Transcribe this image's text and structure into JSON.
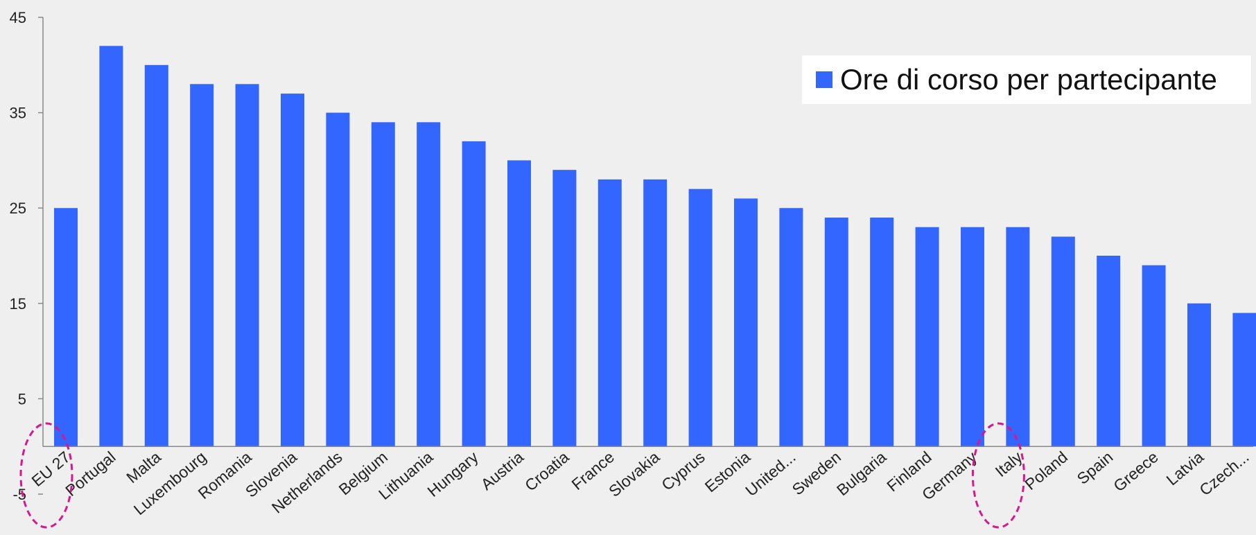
{
  "chart_data": {
    "type": "bar",
    "categories": [
      "EU 27",
      "Portugal",
      "Malta",
      "Luxembourg",
      "Romania",
      "Slovenia",
      "Netherlands",
      "Belgium",
      "Lithuania",
      "Hungary",
      "Austria",
      "Croatia",
      "France",
      "Slovakia",
      "Cyprus",
      "Estonia",
      "United...",
      "Sweden",
      "Bulgaria",
      "Finland",
      "Germany",
      "Italy",
      "Poland",
      "Spain",
      "Greece",
      "Latvia",
      "Czech..."
    ],
    "series": [
      {
        "name": "Ore di corso per partecipante",
        "values": [
          25,
          42,
          40,
          38,
          38,
          37,
          35,
          34,
          34,
          32,
          30,
          29,
          28,
          28,
          27,
          26,
          25,
          24,
          24,
          23,
          23,
          23,
          22,
          20,
          19,
          15,
          14
        ]
      }
    ],
    "title": "",
    "xlabel": "",
    "ylabel": "",
    "ylim": [
      -5,
      45
    ],
    "yticks": [
      "45",
      "35",
      "25",
      "15",
      "5",
      "-5"
    ],
    "ytick_values": [
      45,
      35,
      25,
      15,
      5,
      -5
    ],
    "highlighted": [
      "EU 27",
      "Italy"
    ],
    "legend_position": "top-right",
    "grid": false,
    "colors": {
      "bar": "#3366ff",
      "highlight": "#d6188f",
      "axis": "#888888",
      "background": "#efefef"
    }
  }
}
